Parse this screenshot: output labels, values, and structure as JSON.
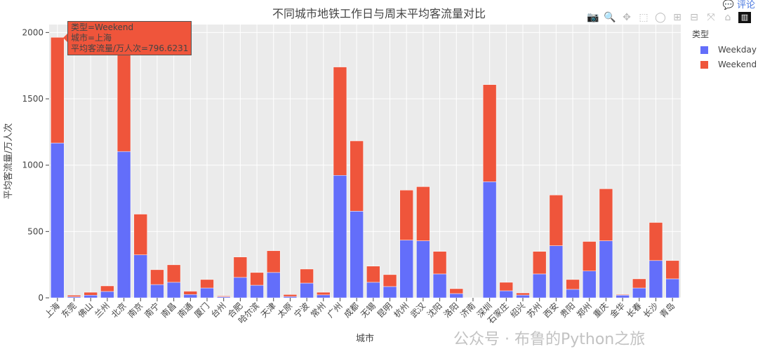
{
  "title": "不同城市地铁工作日与周末平均客流量对比",
  "comment_label": "评论",
  "watermark": "公众号 · 布鲁的Python之旅",
  "tooltip": {
    "line1": "类型=Weekend",
    "line2": "城市=上海",
    "line3": "平均客流量/万人次=796.6231"
  },
  "legend": {
    "title": "类型",
    "items": [
      {
        "name": "Weekday",
        "color": "#636efa"
      },
      {
        "name": "Weekend",
        "color": "#ef553b"
      }
    ]
  },
  "modebar": [
    "camera-icon",
    "zoom-icon",
    "pan-icon",
    "box-select-icon",
    "lasso-icon",
    "zoom-in-icon",
    "zoom-out-icon",
    "autoscale-icon",
    "home-icon",
    "plotly-logo-icon"
  ],
  "chart_data": {
    "type": "bar",
    "barmode": "stack",
    "title": "不同城市地铁工作日与周末平均客流量对比",
    "xlabel": "城市",
    "ylabel": "平均客流量/万人次",
    "ylim": [
      0,
      2060
    ],
    "yticks": [
      0,
      500,
      1000,
      1500,
      2000
    ],
    "categories": [
      "上海",
      "东莞",
      "佛山",
      "兰州",
      "北京",
      "南京",
      "南宁",
      "南昌",
      "南通",
      "厦门",
      "台州",
      "合肥",
      "哈尔滨",
      "天津",
      "太原",
      "宁波",
      "常州",
      "广州",
      "成都",
      "无锡",
      "昆明",
      "杭州",
      "武汉",
      "沈阳",
      "洛阳",
      "济南",
      "深圳",
      "石家庄",
      "绍兴",
      "苏州",
      "西安",
      "贵阳",
      "郑州",
      "重庆",
      "金华",
      "长春",
      "长沙",
      "青岛"
    ],
    "series": [
      {
        "name": "Weekday",
        "color": "#636efa",
        "values": [
          1167,
          8,
          20,
          48,
          1103,
          324,
          100,
          117,
          25,
          74,
          8,
          154,
          95,
          191,
          10,
          111,
          22,
          923,
          653,
          117,
          85,
          435,
          430,
          180,
          32,
          0,
          875,
          53,
          21,
          180,
          393,
          64,
          202,
          430,
          20,
          74,
          281,
          143
        ]
      },
      {
        "name": "Weekend",
        "color": "#ef553b",
        "values": [
          796.6231,
          12,
          22,
          42,
          800,
          307,
          112,
          132,
          25,
          64,
          6,
          154,
          96,
          164,
          15,
          106,
          20,
          817,
          530,
          122,
          90,
          377,
          408,
          170,
          37,
          0,
          732,
          64,
          16,
          170,
          382,
          74,
          223,
          392,
          5,
          69,
          287,
          138
        ]
      }
    ],
    "legend_position": "right"
  }
}
